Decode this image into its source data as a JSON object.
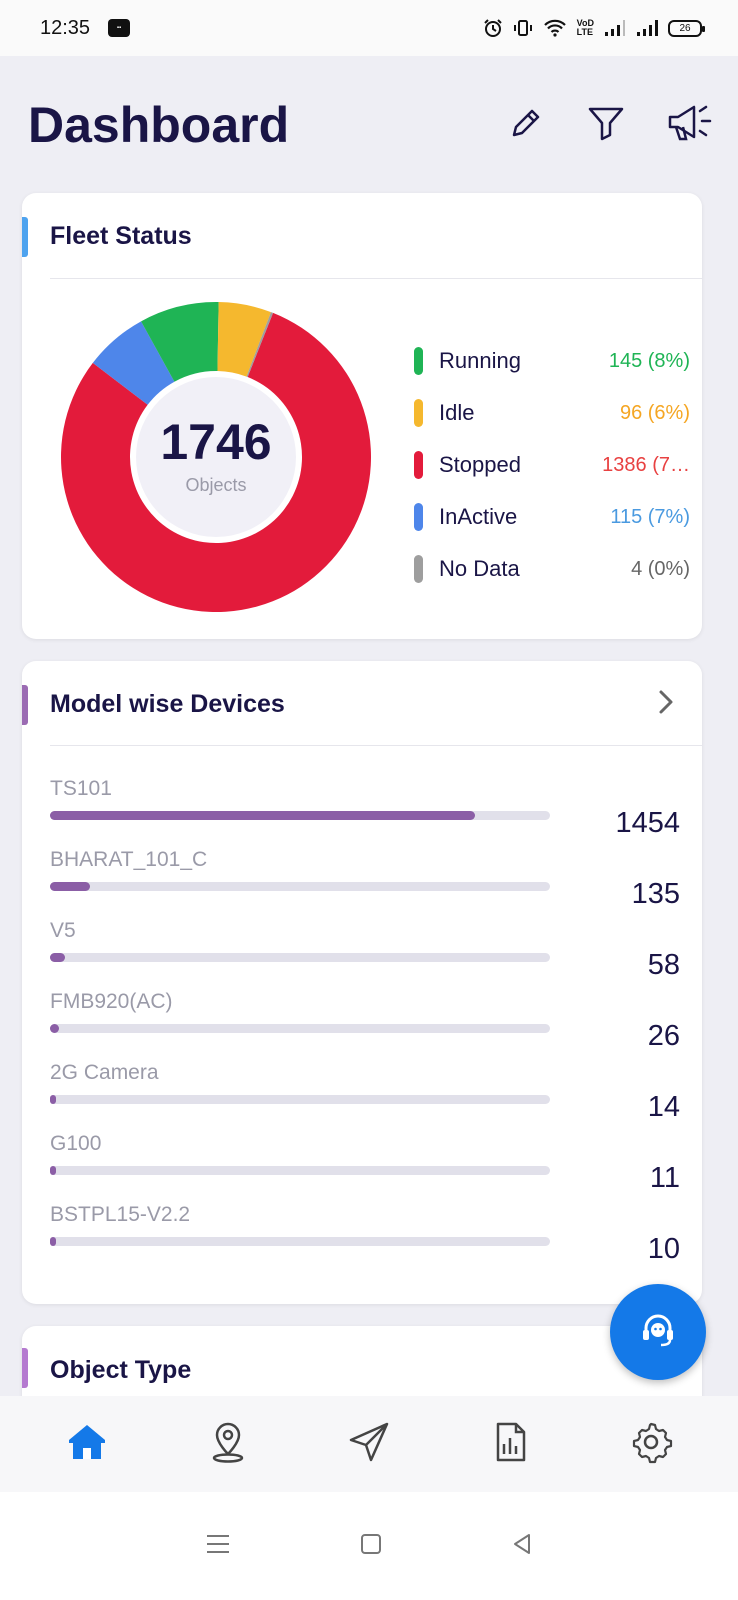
{
  "status_bar": {
    "time": "12:35",
    "app_badge": "Paytm",
    "battery": "26",
    "network": "VoLTE"
  },
  "header": {
    "title": "Dashboard",
    "icons": [
      "pencil-icon",
      "filter-icon",
      "megaphone-icon"
    ]
  },
  "fleet_status": {
    "title": "Fleet Status",
    "accent": "#4ea3ef",
    "total": "1746",
    "total_label": "Objects",
    "items": [
      {
        "name": "Running",
        "value": "145 (8%)",
        "count": 145,
        "color": "#1fb455"
      },
      {
        "name": "Idle",
        "value": "96 (6%)",
        "count": 96,
        "color": "#f5b82e"
      },
      {
        "name": "Stopped",
        "value": "1386 (7…",
        "count": 1386,
        "color": "#e31b3b"
      },
      {
        "name": "InActive",
        "value": "115 (7%)",
        "count": 115,
        "color": "#4e86ea"
      },
      {
        "name": "No Data",
        "value": "4 (0%)",
        "count": 4,
        "color": "#9e9e9e"
      }
    ]
  },
  "model_wise": {
    "title": "Model wise Devices",
    "accent": "#9b6bb3",
    "items": [
      {
        "name": "TS101",
        "count": "1454",
        "fraction": 0.85
      },
      {
        "name": "BHARAT_101_C",
        "count": "135",
        "fraction": 0.08
      },
      {
        "name": "V5",
        "count": "58",
        "fraction": 0.03
      },
      {
        "name": "FMB920(AC)",
        "count": "26",
        "fraction": 0.018
      },
      {
        "name": "2G Camera",
        "count": "14",
        "fraction": 0.008
      },
      {
        "name": "G100",
        "count": "11",
        "fraction": 0.008
      },
      {
        "name": "BSTPL15-V2.2",
        "count": "10",
        "fraction": 0.008
      }
    ]
  },
  "object_type": {
    "title": "Object Type",
    "accent": "#b57ad0"
  },
  "bottom_nav": [
    "home-icon",
    "location-icon",
    "navigate-icon",
    "report-icon",
    "settings-icon"
  ]
}
